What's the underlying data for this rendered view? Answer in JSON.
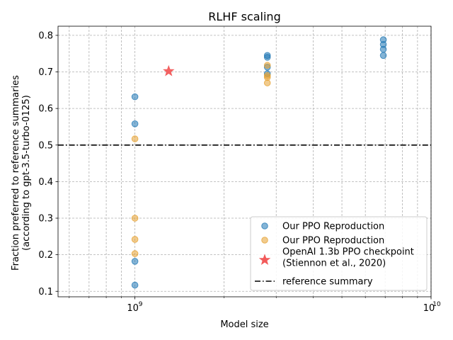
{
  "chart_data": {
    "type": "scatter",
    "title": "RLHF scaling",
    "xlabel": "Model size",
    "ylabel": [
      "Fraction preferred to reference summaries",
      "(according to gpt-3.5-turbo-0125)"
    ],
    "xscale": "log",
    "xlim": [
      550000000,
      10000000000
    ],
    "ylim": [
      0.085,
      0.825
    ],
    "grid": true,
    "grid_includes_minor": true,
    "legend_position": "lower-right",
    "x_tick_labels": [
      {
        "value": 1000000000,
        "base": "10",
        "exp": "9"
      },
      {
        "value": 10000000000,
        "base": "10",
        "exp": "10"
      }
    ],
    "y_ticks": [
      0.1,
      0.2,
      0.3,
      0.4,
      0.5,
      0.6,
      0.7,
      0.8
    ],
    "y_tick_labels": [
      "0.1",
      "0.2",
      "0.3",
      "0.4",
      "0.5",
      "0.6",
      "0.7",
      "0.8"
    ],
    "series": [
      {
        "name": "Our PPO Reproduction",
        "marker": "circle",
        "color": "#1f77b4",
        "points": [
          [
            1000000000,
            0.632
          ],
          [
            1000000000,
            0.558
          ],
          [
            1000000000,
            0.182
          ],
          [
            1000000000,
            0.117
          ],
          [
            2800000000,
            0.745
          ],
          [
            2800000000,
            0.74
          ],
          [
            2800000000,
            0.713
          ],
          [
            2800000000,
            0.695
          ],
          [
            6900000000,
            0.788
          ],
          [
            6900000000,
            0.775
          ],
          [
            6900000000,
            0.762
          ],
          [
            6900000000,
            0.745
          ]
        ]
      },
      {
        "name": "Our PPO Reproduction",
        "marker": "circle",
        "color": "#e5a02f",
        "points": [
          [
            1000000000,
            0.517
          ],
          [
            1000000000,
            0.3
          ],
          [
            1000000000,
            0.242
          ],
          [
            1000000000,
            0.203
          ],
          [
            2800000000,
            0.718
          ],
          [
            2800000000,
            0.69
          ],
          [
            2800000000,
            0.685
          ],
          [
            2800000000,
            0.67
          ]
        ]
      },
      {
        "name": "OpenAI 1.3b PPO checkpoint\n(Stiennon et al., 2020)",
        "marker": "star",
        "color": "#f25a5a",
        "points": [
          [
            1300000000,
            0.702
          ]
        ]
      },
      {
        "name": "reference summary",
        "type": "hline",
        "style": "dash-dot",
        "color": "#000000",
        "y": 0.5
      }
    ]
  }
}
